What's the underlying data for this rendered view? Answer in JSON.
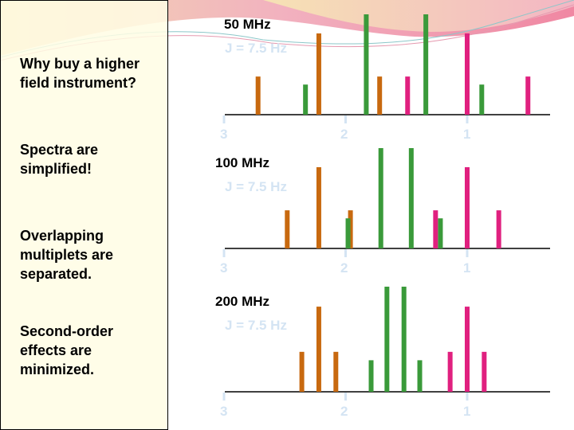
{
  "sidebar": {
    "items": [
      {
        "text": "Why buy a higher\nfield instrument?"
      },
      {
        "text": "Spectra are\nsimplified!"
      },
      {
        "text": "Overlapping\nmultiplets are\nseparated."
      },
      {
        "text": "Second-order\neffects are\nminimized."
      }
    ]
  },
  "colors": {
    "orange": "#c8690f",
    "green": "#3a9a3a",
    "pink": "#e0207f",
    "axis": "#000000",
    "label_light": "#d4e4f3"
  },
  "spectra": [
    {
      "field": "50 MHz",
      "coupling": "J = 7.5 Hz",
      "ticks": [
        "3",
        "2",
        "1"
      ],
      "lines": [
        {
          "ppm": 2.72,
          "intensity": 0.38,
          "color": "orange"
        },
        {
          "ppm": 2.33,
          "intensity": 0.3,
          "color": "green"
        },
        {
          "ppm": 2.22,
          "intensity": 0.81,
          "color": "orange"
        },
        {
          "ppm": 1.83,
          "intensity": 1.0,
          "color": "green"
        },
        {
          "ppm": 1.72,
          "intensity": 0.38,
          "color": "orange"
        },
        {
          "ppm": 1.49,
          "intensity": 0.38,
          "color": "pink"
        },
        {
          "ppm": 1.34,
          "intensity": 1.0,
          "color": "green"
        },
        {
          "ppm": 1.0,
          "intensity": 0.81,
          "color": "pink"
        },
        {
          "ppm": 0.88,
          "intensity": 0.3,
          "color": "green"
        },
        {
          "ppm": 0.5,
          "intensity": 0.38,
          "color": "pink"
        }
      ]
    },
    {
      "field": "100 MHz",
      "coupling": "J = 7.5 Hz",
      "ticks": [
        "3",
        "2",
        "1"
      ],
      "lines": [
        {
          "ppm": 2.48,
          "intensity": 0.38,
          "color": "orange"
        },
        {
          "ppm": 2.22,
          "intensity": 0.81,
          "color": "orange"
        },
        {
          "ppm": 1.96,
          "intensity": 0.38,
          "color": "orange"
        },
        {
          "ppm": 1.98,
          "intensity": 0.3,
          "color": "green"
        },
        {
          "ppm": 1.71,
          "intensity": 1.0,
          "color": "green"
        },
        {
          "ppm": 1.46,
          "intensity": 1.0,
          "color": "green"
        },
        {
          "ppm": 1.26,
          "intensity": 0.38,
          "color": "pink"
        },
        {
          "ppm": 1.22,
          "intensity": 0.3,
          "color": "green"
        },
        {
          "ppm": 1.0,
          "intensity": 0.81,
          "color": "pink"
        },
        {
          "ppm": 0.74,
          "intensity": 0.38,
          "color": "pink"
        }
      ]
    },
    {
      "field": "200 MHz",
      "coupling": "J = 7.5 Hz",
      "ticks": [
        "3",
        "2",
        "1"
      ],
      "lines": [
        {
          "ppm": 2.36,
          "intensity": 0.38,
          "color": "orange"
        },
        {
          "ppm": 2.22,
          "intensity": 0.81,
          "color": "orange"
        },
        {
          "ppm": 2.08,
          "intensity": 0.38,
          "color": "orange"
        },
        {
          "ppm": 1.79,
          "intensity": 0.3,
          "color": "green"
        },
        {
          "ppm": 1.66,
          "intensity": 1.0,
          "color": "green"
        },
        {
          "ppm": 1.52,
          "intensity": 1.0,
          "color": "green"
        },
        {
          "ppm": 1.39,
          "intensity": 0.3,
          "color": "green"
        },
        {
          "ppm": 1.14,
          "intensity": 0.38,
          "color": "pink"
        },
        {
          "ppm": 1.0,
          "intensity": 0.81,
          "color": "pink"
        },
        {
          "ppm": 0.86,
          "intensity": 0.38,
          "color": "pink"
        }
      ]
    }
  ]
}
